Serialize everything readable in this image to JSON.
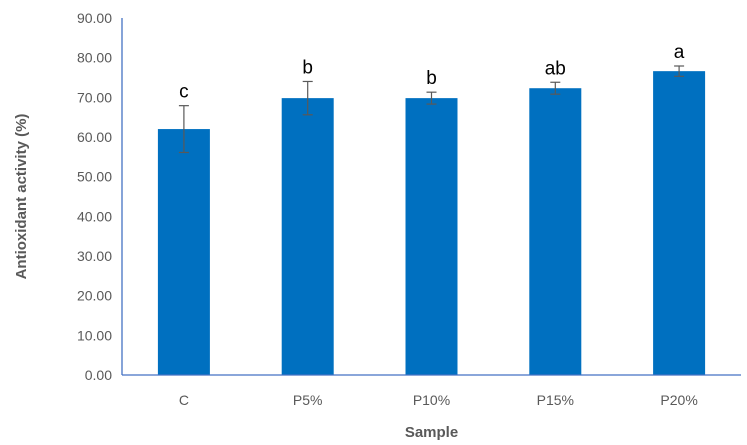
{
  "chart_data": {
    "type": "bar",
    "categories": [
      "C",
      "P5%",
      "P10%",
      "P15%",
      "P20%"
    ],
    "series": [
      {
        "values": [
          62.0,
          69.8,
          69.8,
          72.3,
          76.6
        ],
        "errors": [
          5.9,
          4.2,
          1.5,
          1.5,
          1.3
        ],
        "significance": [
          "c",
          "b",
          "b",
          "ab",
          "a"
        ]
      }
    ],
    "xlabel": "Sample",
    "ylabel": "Antioxidant activity (%)",
    "ylim": [
      0,
      90
    ],
    "yticks": [
      "0.00",
      "10.00",
      "20.00",
      "30.00",
      "40.00",
      "50.00",
      "60.00",
      "70.00",
      "80.00",
      "90.00"
    ],
    "grid": false,
    "legend": "none",
    "colors": {
      "bar": "#0070C0",
      "axis": "#4472C4",
      "error_bar": "#595959"
    }
  }
}
